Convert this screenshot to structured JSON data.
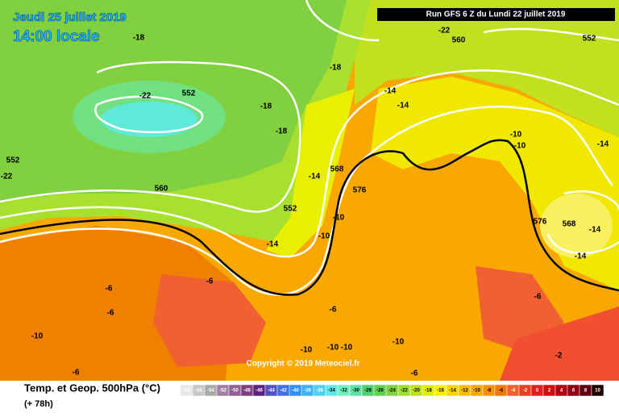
{
  "header": {
    "date": "Jeudi 25 juillet 2019",
    "time": "14:00 locale",
    "run": "Run GFS 6 Z du Lundi 22 juillet 2019"
  },
  "map": {
    "labels": [
      "-18",
      "-22",
      "560",
      "552",
      "-18",
      "-22",
      "552",
      "-18",
      "-18",
      "-14",
      "-14",
      "552",
      "-22",
      "560",
      "-14",
      "568",
      "-10",
      "-10",
      "-14",
      "576",
      "552",
      "-10",
      "-10",
      "-14",
      "576",
      "568",
      "-14",
      "-14",
      "-6",
      "-6",
      "-6",
      "-6",
      "-6",
      "-10",
      "-10",
      "-10",
      "-10",
      "-10",
      "-2",
      "-6",
      "-6"
    ],
    "copyright": "Copyright © 2019 Meteociel.fr"
  },
  "legend": {
    "title": "Temp. et Geop. 500hPa (°C)",
    "lead": "(+ 78h)",
    "values": [
      -58,
      -56,
      -54,
      -52,
      -50,
      -48,
      -46,
      -44,
      -42,
      -40,
      -38,
      -36,
      -34,
      -32,
      -30,
      -28,
      -26,
      -24,
      -22,
      -20,
      -18,
      -16,
      -14,
      -12,
      -10,
      -8,
      -6,
      -4,
      -2,
      0,
      2,
      4,
      6,
      8,
      10
    ],
    "colors": [
      "#e8e8e8",
      "#c8c8c8",
      "#a8a8a8",
      "#a080a0",
      "#906090",
      "#804080",
      "#602080",
      "#5050c0",
      "#4070e0",
      "#3090f0",
      "#40b0f0",
      "#50d0f0",
      "#60e8e8",
      "#70f0c0",
      "#60e0a0",
      "#50d070",
      "#60d050",
      "#80d040",
      "#a0e030",
      "#c0e020",
      "#e0f000",
      "#f8f000",
      "#f8d800",
      "#f8c000",
      "#f8a800",
      "#f89000",
      "#f07800",
      "#f06030",
      "#e84020",
      "#e02020",
      "#d01010",
      "#b00010",
      "#900010",
      "#600010",
      "#200000"
    ]
  }
}
